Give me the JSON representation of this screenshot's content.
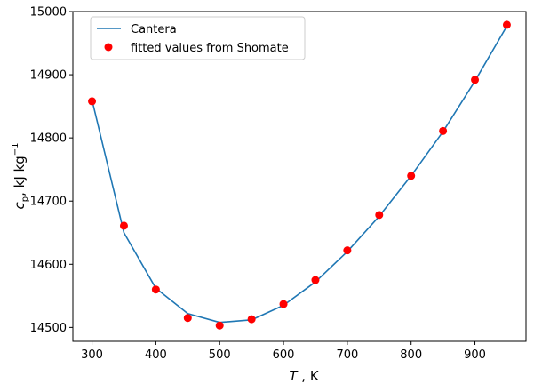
{
  "chart_data": {
    "type": "line",
    "xlabel_var": "T",
    "xlabel_unit": " , K",
    "ylabel_var": "c",
    "ylabel_sub": "p",
    "ylabel_unit": ", kJ kg",
    "ylabel_sup": "−1",
    "xlim": [
      270,
      980
    ],
    "ylim": [
      14478,
      15000
    ],
    "xticks": [
      300,
      400,
      500,
      600,
      700,
      800,
      900
    ],
    "yticks": [
      14500,
      14600,
      14700,
      14800,
      14900,
      15000
    ],
    "grid": false,
    "legend_position": "top-left",
    "series": [
      {
        "name": "Cantera",
        "kind": "line",
        "color": "#1f77b4",
        "x": [
          300,
          350,
          400,
          450,
          500,
          550,
          600,
          650,
          700,
          750,
          800,
          850,
          900,
          950
        ],
        "y": [
          14860,
          14650,
          14562,
          14522,
          14508,
          14512,
          14535,
          14572,
          14620,
          14676,
          14740,
          14810,
          14890,
          14977
        ]
      },
      {
        "name": "fitted values from Shomate",
        "kind": "scatter",
        "color": "#ff0000",
        "x": [
          300,
          350,
          400,
          450,
          500,
          550,
          600,
          650,
          700,
          750,
          800,
          850,
          900,
          950
        ],
        "y": [
          14858,
          14661,
          14560,
          14515,
          14503,
          14513,
          14537,
          14575,
          14622,
          14678,
          14740,
          14811,
          14892,
          14979
        ]
      }
    ]
  }
}
